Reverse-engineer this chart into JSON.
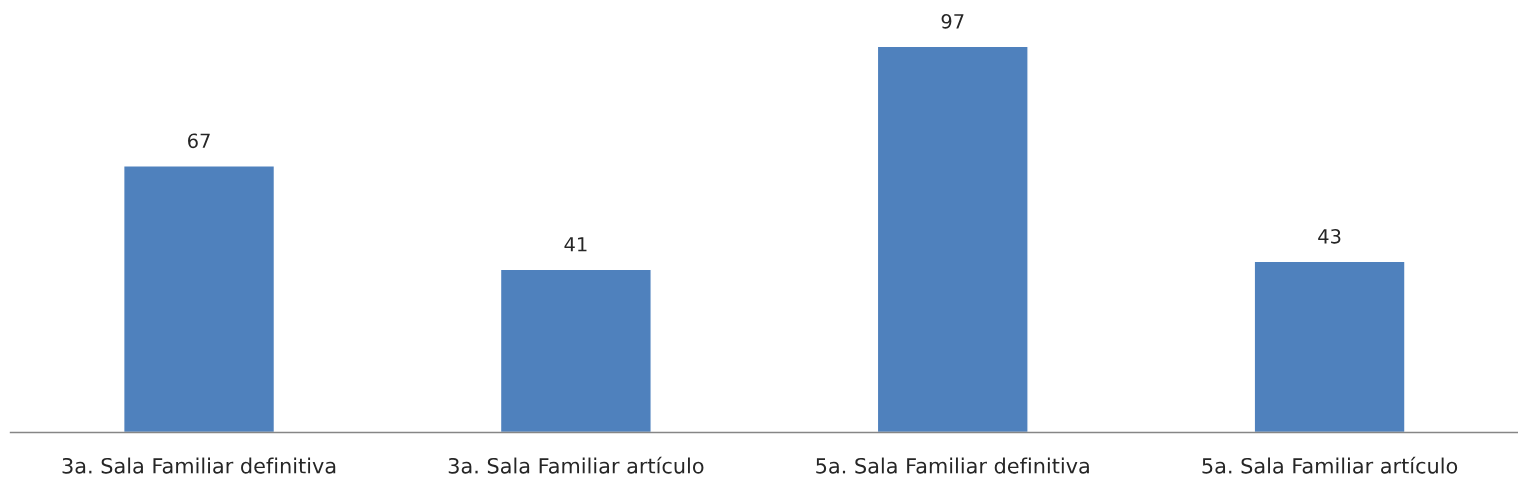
{
  "chart_data": {
    "type": "bar",
    "categories": [
      "3a. Sala Familiar definitiva",
      "3a. Sala Familiar artículo",
      "5a. Sala Familiar definitiva",
      "5a. Sala Familiar artículo"
    ],
    "values": [
      67,
      41,
      97,
      43
    ],
    "color": "#4f81bd",
    "data_labels": true
  }
}
